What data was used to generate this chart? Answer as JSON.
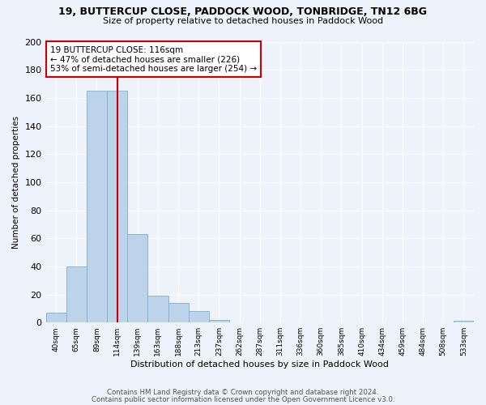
{
  "title1": "19, BUTTERCUP CLOSE, PADDOCK WOOD, TONBRIDGE, TN12 6BG",
  "title2": "Size of property relative to detached houses in Paddock Wood",
  "xlabel": "Distribution of detached houses by size in Paddock Wood",
  "ylabel": "Number of detached properties",
  "categories": [
    "40sqm",
    "65sqm",
    "89sqm",
    "114sqm",
    "139sqm",
    "163sqm",
    "188sqm",
    "213sqm",
    "237sqm",
    "262sqm",
    "287sqm",
    "311sqm",
    "336sqm",
    "360sqm",
    "385sqm",
    "410sqm",
    "434sqm",
    "459sqm",
    "484sqm",
    "508sqm",
    "533sqm"
  ],
  "values": [
    7,
    40,
    165,
    165,
    63,
    19,
    14,
    8,
    2,
    0,
    0,
    0,
    0,
    0,
    0,
    0,
    0,
    0,
    0,
    0,
    1
  ],
  "bar_color": "#bdd3ea",
  "bar_edge_color": "#7aafd4",
  "vline_x_index": 3,
  "vline_color": "#cc0000",
  "annotation_text": "19 BUTTERCUP CLOSE: 116sqm\n← 47% of detached houses are smaller (226)\n53% of semi-detached houses are larger (254) →",
  "annotation_box_color": "white",
  "annotation_box_edge": "#cc0000",
  "footer1": "Contains HM Land Registry data © Crown copyright and database right 2024.",
  "footer2": "Contains public sector information licensed under the Open Government Licence v3.0.",
  "bg_color": "#eef2fa",
  "ylim": [
    0,
    200
  ],
  "yticks": [
    0,
    20,
    40,
    60,
    80,
    100,
    120,
    140,
    160,
    180,
    200
  ]
}
